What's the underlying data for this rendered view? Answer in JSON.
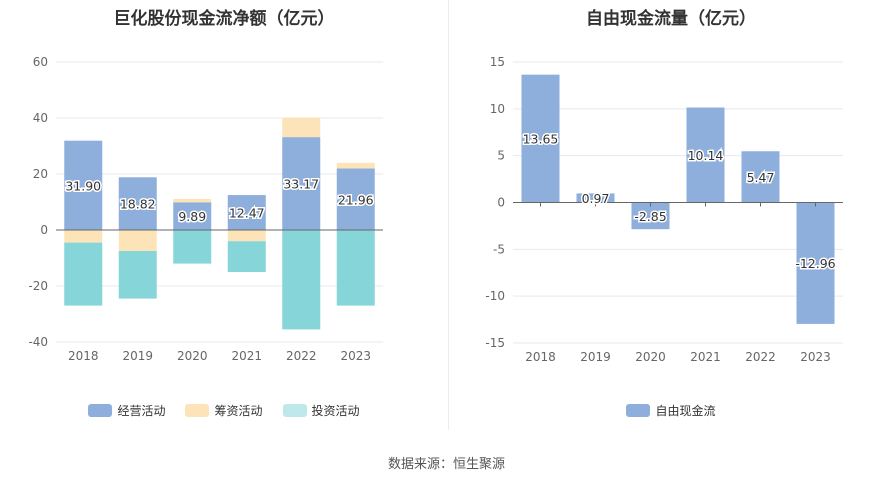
{
  "charts": [
    {
      "title": "巨化股份现金流净额（亿元）",
      "legend": [
        {
          "label": "经营活动",
          "color": "#8eaedc"
        },
        {
          "label": "筹资活动",
          "color": "#fde3b8"
        },
        {
          "label": "投资活动",
          "color": "#bfe8ea"
        }
      ]
    },
    {
      "title": "自由现金流量（亿元）",
      "legend": [
        {
          "label": "自由现金流",
          "color": "#8eaedc"
        }
      ]
    }
  ],
  "source": "数据来源：恒生聚源",
  "chart_data": [
    {
      "type": "bar",
      "stacked": true,
      "title": "巨化股份现金流净额（亿元）",
      "categories": [
        "2018",
        "2019",
        "2020",
        "2021",
        "2022",
        "2023"
      ],
      "ylim": [
        -40,
        60
      ],
      "yticks": [
        -40,
        -20,
        0,
        20,
        40,
        60
      ],
      "grid": true,
      "legend_position": "bottom",
      "series": [
        {
          "name": "经营活动",
          "color": "#8eaedc",
          "values": [
            31.9,
            18.82,
            9.89,
            12.47,
            33.17,
            21.96
          ],
          "labels": [
            "31.90",
            "18.82",
            "9.89",
            "12.47",
            "33.17",
            "21.96"
          ]
        },
        {
          "name": "筹资活动",
          "color": "#fde3b8",
          "values": [
            -4.5,
            -7.5,
            1.2,
            -4.0,
            7.0,
            2.0
          ]
        },
        {
          "name": "投资活动",
          "color": "#86d6d9",
          "values": [
            -22.5,
            -17.0,
            -12.0,
            -11.0,
            -35.5,
            -27.0
          ]
        }
      ]
    },
    {
      "type": "bar",
      "title": "自由现金流量（亿元）",
      "categories": [
        "2018",
        "2019",
        "2020",
        "2021",
        "2022",
        "2023"
      ],
      "ylim": [
        -15,
        15
      ],
      "yticks": [
        -15,
        -10,
        -5,
        0,
        5,
        10,
        15
      ],
      "grid": true,
      "legend_position": "bottom",
      "series": [
        {
          "name": "自由现金流",
          "color": "#8eaedc",
          "values": [
            13.65,
            0.97,
            -2.85,
            10.14,
            5.47,
            -12.96
          ],
          "labels": [
            "13.65",
            "0.97",
            "-2.85",
            "10.14",
            "5.47",
            "-12.96"
          ]
        }
      ]
    }
  ]
}
